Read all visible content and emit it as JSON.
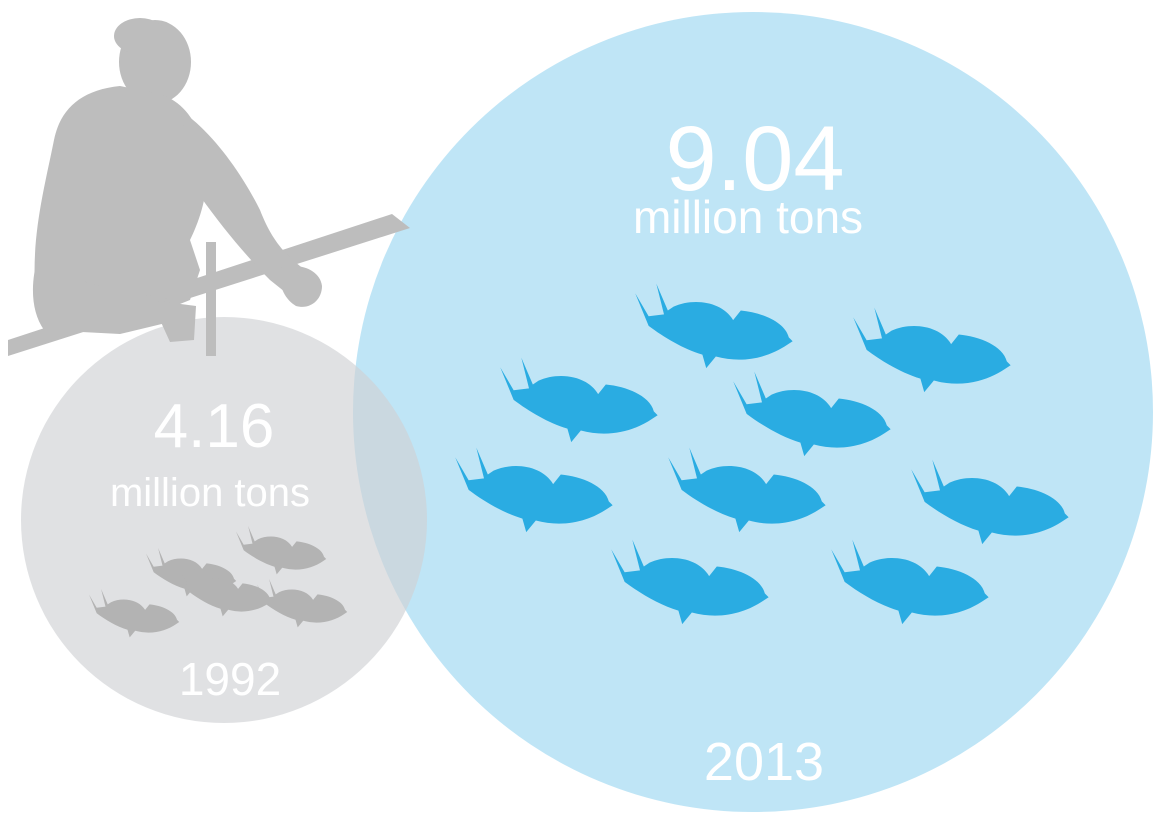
{
  "colors": {
    "circle_1992": "#d9dadc",
    "circle_2013": "#aadcf3",
    "fish_1992": "#b3b3b3",
    "fish_2013": "#2aace2",
    "person": "#bdbdbd",
    "label_text": "#ffffff"
  },
  "circle_1992": {
    "year": "1992",
    "value": "4.16",
    "unit": "million tons",
    "fish_count": 5,
    "icon": "fish-icon"
  },
  "circle_2013": {
    "year": "2013",
    "value": "9.04",
    "unit": "million tons",
    "fish_count": 9,
    "icon": "fish-icon"
  },
  "illustration": {
    "icon": "fisherman-with-rod-icon"
  }
}
